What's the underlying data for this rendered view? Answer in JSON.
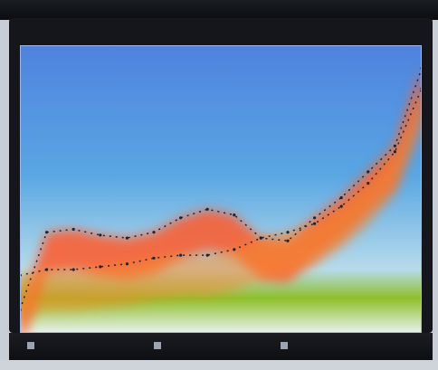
{
  "chart_data": {
    "type": "area",
    "title": "",
    "xlabel": "",
    "ylabel": "",
    "grid": false,
    "legend_placement": "bottom",
    "x": [
      0,
      1,
      2,
      3,
      4,
      5,
      6,
      7,
      8,
      9,
      10,
      11,
      12,
      13,
      14,
      15
    ],
    "xlim": [
      0,
      15
    ],
    "ylim": [
      0,
      100
    ],
    "series": [
      {
        "name": "",
        "color": "#ff5a2a",
        "values": [
          8,
          35,
          36,
          34,
          33,
          35,
          40,
          43,
          41,
          33,
          32,
          40,
          47,
          56,
          65,
          92
        ]
      },
      {
        "name": "",
        "color": "#f58a2c",
        "values": [
          20,
          22,
          22,
          23,
          24,
          26,
          27,
          27,
          29,
          33,
          35,
          38,
          44,
          52,
          63,
          85
        ]
      }
    ],
    "band_colors": [
      "#4f82de",
      "#59a6e3",
      "#b7dbea",
      "#8fbf2a",
      "#e8f2ef"
    ],
    "legend": [
      "",
      "",
      ""
    ]
  }
}
